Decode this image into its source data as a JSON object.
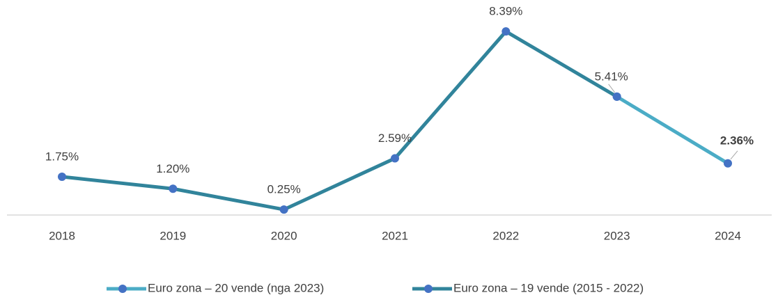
{
  "chart_data": {
    "type": "line",
    "categories": [
      "2018",
      "2019",
      "2020",
      "2021",
      "2022",
      "2023",
      "2024"
    ],
    "series": [
      {
        "name": "Euro zona – 20 vende (nga 2023)",
        "color": "#4bacc6",
        "values": [
          null,
          null,
          null,
          null,
          null,
          5.41,
          2.36
        ],
        "value_labels": [
          null,
          null,
          null,
          null,
          null,
          null,
          "2.36%"
        ]
      },
      {
        "name": "Euro zona – 19 vende (2015 - 2022)",
        "color": "#31849b",
        "values": [
          1.75,
          1.2,
          0.25,
          2.59,
          8.39,
          5.41,
          null
        ],
        "value_labels": [
          "1.75%",
          "1.20%",
          "0.25%",
          "2.59%",
          "8.39%",
          "5.41%",
          null
        ]
      }
    ],
    "marker_color": "#4472c4",
    "ylim": [
      0,
      9
    ],
    "legend": "bottom"
  }
}
